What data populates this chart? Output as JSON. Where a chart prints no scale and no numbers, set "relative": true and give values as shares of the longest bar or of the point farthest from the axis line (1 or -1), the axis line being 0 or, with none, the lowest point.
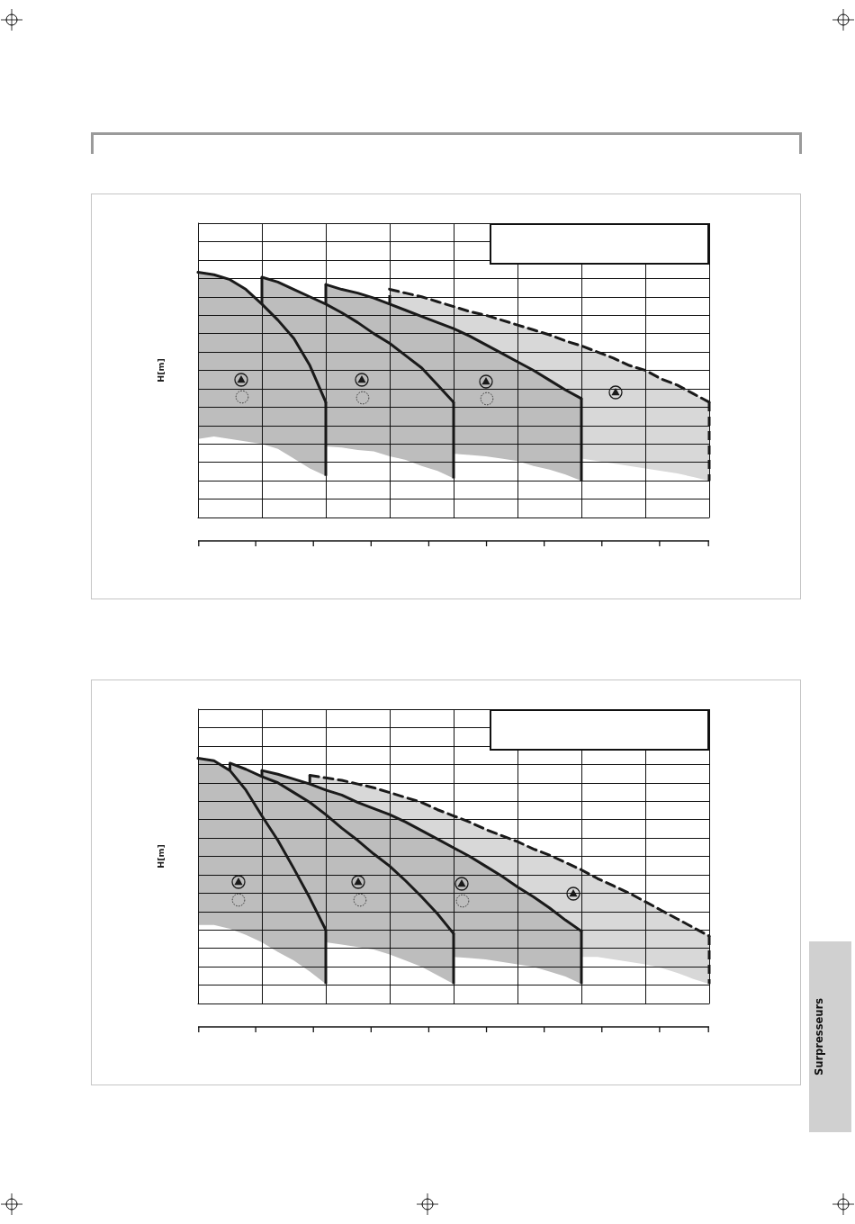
{
  "chart_data": [
    {
      "type": "line",
      "categories": [
        null,
        null,
        null,
        null,
        null,
        null,
        null,
        null,
        null,
        null,
        null,
        null,
        null,
        null,
        null,
        null,
        null,
        null,
        null,
        null,
        null,
        null,
        null,
        null,
        null,
        null,
        null,
        null,
        null,
        null,
        null,
        null,
        null
      ],
      "ylabel": "H[m]",
      "relative": true,
      "grid": true,
      "tick_labels": false,
      "marker": "none",
      "line_style": "solid",
      "series": [
        {
          "color": "#1a1a1a",
          "values": [
            1.0,
            0.99,
            0.97,
            0.93,
            0.87,
            0.805,
            0.73,
            0.62,
            0.47,
            null,
            null,
            null,
            null,
            null,
            null,
            null,
            null,
            null,
            null,
            null,
            null,
            null,
            null,
            null,
            null,
            null,
            null,
            null,
            null,
            null,
            null,
            null,
            null
          ],
          "lower": [
            0.32,
            0.33,
            0.32,
            0.31,
            0.3,
            0.28,
            0.24,
            0.2,
            0.17,
            null,
            null,
            null,
            null,
            null,
            null,
            null,
            null,
            null,
            null,
            null,
            null,
            null,
            null,
            null,
            null,
            null,
            null,
            null,
            null,
            null,
            null,
            null,
            null
          ],
          "upper": [
            1.0,
            0.99,
            0.97,
            0.93,
            0.87,
            0.805,
            0.73,
            0.62,
            0.47,
            null,
            null,
            null,
            null,
            null,
            null,
            null,
            null,
            null,
            null,
            null,
            null,
            null,
            null,
            null,
            null,
            null,
            null,
            null,
            null,
            null,
            null,
            null,
            null
          ]
        },
        {
          "color": "#1a1a1a",
          "values": [
            null,
            null,
            null,
            null,
            0.98,
            0.96,
            0.93,
            0.9,
            0.87,
            0.835,
            0.795,
            0.75,
            0.71,
            0.66,
            0.61,
            0.54,
            0.47,
            null,
            null,
            null,
            null,
            null,
            null,
            null,
            null,
            null,
            null,
            null,
            null,
            null,
            null,
            null,
            null
          ],
          "lower": [
            null,
            null,
            null,
            null,
            0.87,
            0.805,
            0.73,
            0.62,
            0.29,
            0.285,
            0.275,
            0.27,
            0.25,
            0.235,
            0.21,
            0.19,
            0.16,
            null,
            null,
            null,
            null,
            null,
            null,
            null,
            null,
            null,
            null,
            null,
            null,
            null,
            null,
            null,
            null
          ],
          "upper": [
            null,
            null,
            null,
            null,
            0.98,
            0.96,
            0.93,
            0.9,
            0.87,
            0.835,
            0.795,
            0.75,
            0.71,
            0.66,
            0.61,
            0.54,
            0.47,
            null,
            null,
            null,
            null,
            null,
            null,
            null,
            null,
            null,
            null,
            null,
            null,
            null,
            null,
            null,
            null
          ]
        },
        {
          "color": "#1a1a1a",
          "values": [
            null,
            null,
            null,
            null,
            null,
            null,
            null,
            null,
            0.95,
            0.93,
            0.915,
            0.895,
            0.87,
            0.845,
            0.82,
            0.795,
            0.77,
            0.74,
            0.705,
            0.67,
            0.635,
            0.6,
            0.56,
            0.52,
            0.485,
            null,
            null,
            null,
            null,
            null,
            null,
            null,
            null
          ],
          "lower": [
            null,
            null,
            null,
            null,
            null,
            null,
            null,
            null,
            0.87,
            0.835,
            0.795,
            0.75,
            0.71,
            0.66,
            0.61,
            0.54,
            0.26,
            0.255,
            0.25,
            0.24,
            0.23,
            0.21,
            0.195,
            0.175,
            0.15,
            null,
            null,
            null,
            null,
            null,
            null,
            null,
            null
          ],
          "upper": [
            null,
            null,
            null,
            null,
            null,
            null,
            null,
            null,
            0.95,
            0.93,
            0.915,
            0.895,
            0.87,
            0.845,
            0.82,
            0.795,
            0.77,
            0.74,
            0.705,
            0.67,
            0.635,
            0.6,
            0.56,
            0.52,
            0.485,
            null,
            null,
            null,
            null,
            null,
            null,
            null,
            null
          ]
        },
        {
          "color": "#1a1a1a",
          "line_style": "dashed",
          "values": [
            null,
            null,
            null,
            null,
            null,
            null,
            null,
            null,
            null,
            null,
            null,
            null,
            0.93,
            0.915,
            0.9,
            0.88,
            0.86,
            0.84,
            0.825,
            0.805,
            0.785,
            0.765,
            0.745,
            0.72,
            0.7,
            0.675,
            0.65,
            0.62,
            0.6,
            0.565,
            0.54,
            0.505,
            0.47
          ],
          "lower": [
            null,
            null,
            null,
            null,
            null,
            null,
            null,
            null,
            null,
            null,
            null,
            null,
            0.87,
            0.845,
            0.82,
            0.795,
            0.77,
            0.74,
            0.705,
            0.67,
            0.635,
            0.6,
            0.56,
            0.52,
            0.24,
            0.23,
            0.22,
            0.21,
            0.2,
            0.19,
            0.18,
            0.165,
            0.15
          ],
          "upper": [
            null,
            null,
            null,
            null,
            null,
            null,
            null,
            null,
            null,
            null,
            null,
            null,
            0.93,
            0.915,
            0.9,
            0.88,
            0.86,
            0.84,
            0.825,
            0.805,
            0.785,
            0.765,
            0.745,
            0.72,
            0.7,
            0.675,
            0.65,
            0.62,
            0.6,
            0.565,
            0.54,
            0.505,
            0.47
          ]
        }
      ]
    },
    {
      "type": "line",
      "categories": [
        null,
        null,
        null,
        null,
        null,
        null,
        null,
        null,
        null,
        null,
        null,
        null,
        null,
        null,
        null,
        null,
        null,
        null,
        null,
        null,
        null,
        null,
        null,
        null,
        null,
        null,
        null,
        null,
        null,
        null,
        null,
        null,
        null
      ],
      "ylabel": "H[m]",
      "relative": true,
      "grid": true,
      "tick_labels": false,
      "marker": "none",
      "line_style": "solid",
      "annotations": [
        "Surpresseurs"
      ],
      "series": [
        {
          "color": "#1a1a1a",
          "values": [
            1.0,
            0.99,
            0.95,
            0.87,
            0.765,
            0.665,
            0.55,
            0.43,
            0.3,
            null,
            null,
            null,
            null,
            null,
            null,
            null,
            null,
            null,
            null,
            null,
            null,
            null,
            null,
            null,
            null,
            null,
            null,
            null,
            null,
            null,
            null,
            null,
            null
          ],
          "lower": [
            0.32,
            0.32,
            0.305,
            0.28,
            0.25,
            0.21,
            0.175,
            0.13,
            0.08,
            null,
            null,
            null,
            null,
            null,
            null,
            null,
            null,
            null,
            null,
            null,
            null,
            null,
            null,
            null,
            null,
            null,
            null,
            null,
            null,
            null,
            null,
            null,
            null
          ],
          "upper": [
            1.0,
            0.99,
            0.95,
            0.87,
            0.765,
            0.665,
            0.55,
            0.43,
            0.3,
            null,
            null,
            null,
            null,
            null,
            null,
            null,
            null,
            null,
            null,
            null,
            null,
            null,
            null,
            null,
            null,
            null,
            null,
            null,
            null,
            null,
            null,
            null,
            null
          ]
        },
        {
          "color": "#1a1a1a",
          "values": [
            null,
            null,
            0.98,
            0.955,
            0.925,
            0.9,
            0.86,
            0.82,
            0.77,
            0.715,
            0.665,
            0.61,
            0.56,
            0.5,
            0.435,
            0.365,
            0.285,
            null,
            null,
            null,
            null,
            null,
            null,
            null,
            null,
            null,
            null,
            null,
            null,
            null,
            null,
            null,
            null
          ],
          "lower": [
            null,
            null,
            0.95,
            0.87,
            0.765,
            0.665,
            0.55,
            0.43,
            0.25,
            0.24,
            0.23,
            0.22,
            0.2,
            0.175,
            0.15,
            0.115,
            0.08,
            null,
            null,
            null,
            null,
            null,
            null,
            null,
            null,
            null,
            null,
            null,
            null,
            null,
            null,
            null,
            null
          ],
          "upper": [
            null,
            null,
            0.98,
            0.955,
            0.925,
            0.9,
            0.86,
            0.82,
            0.77,
            0.715,
            0.665,
            0.61,
            0.56,
            0.5,
            0.435,
            0.365,
            0.285,
            null,
            null,
            null,
            null,
            null,
            null,
            null,
            null,
            null,
            null,
            null,
            null,
            null,
            null,
            null,
            null
          ]
        },
        {
          "color": "#1a1a1a",
          "values": [
            null,
            null,
            null,
            null,
            0.95,
            0.935,
            0.915,
            0.895,
            0.87,
            0.85,
            0.82,
            0.795,
            0.77,
            0.74,
            0.705,
            0.67,
            0.635,
            0.6,
            0.56,
            0.52,
            0.475,
            0.435,
            0.39,
            0.34,
            0.295,
            null,
            null,
            null,
            null,
            null,
            null,
            null,
            null
          ],
          "lower": [
            null,
            null,
            null,
            null,
            0.925,
            0.9,
            0.86,
            0.82,
            0.77,
            0.715,
            0.665,
            0.61,
            0.56,
            0.5,
            0.435,
            0.365,
            0.19,
            0.185,
            0.18,
            0.17,
            0.16,
            0.15,
            0.13,
            0.11,
            0.08,
            null,
            null,
            null,
            null,
            null,
            null,
            null,
            null
          ],
          "upper": [
            null,
            null,
            null,
            null,
            0.95,
            0.935,
            0.915,
            0.895,
            0.87,
            0.85,
            0.82,
            0.795,
            0.77,
            0.74,
            0.705,
            0.67,
            0.635,
            0.6,
            0.56,
            0.52,
            0.475,
            0.435,
            0.39,
            0.34,
            0.295,
            null,
            null,
            null,
            null,
            null,
            null,
            null,
            null
          ]
        },
        {
          "color": "#1a1a1a",
          "line_style": "dashed",
          "values": [
            null,
            null,
            null,
            null,
            null,
            null,
            null,
            0.93,
            0.92,
            0.91,
            0.895,
            0.88,
            0.86,
            0.84,
            0.82,
            0.79,
            0.765,
            0.74,
            0.71,
            0.685,
            0.66,
            0.63,
            0.605,
            0.575,
            0.545,
            0.51,
            0.48,
            0.45,
            0.415,
            0.38,
            0.345,
            0.31,
            0.275
          ],
          "lower": [
            null,
            null,
            null,
            null,
            null,
            null,
            null,
            0.895,
            0.87,
            0.85,
            0.82,
            0.795,
            0.77,
            0.74,
            0.705,
            0.67,
            0.635,
            0.6,
            0.56,
            0.52,
            0.475,
            0.435,
            0.39,
            0.34,
            0.19,
            0.19,
            0.18,
            0.17,
            0.16,
            0.145,
            0.125,
            0.1,
            0.08
          ],
          "upper": [
            null,
            null,
            null,
            null,
            null,
            null,
            null,
            0.93,
            0.92,
            0.91,
            0.895,
            0.88,
            0.86,
            0.84,
            0.82,
            0.79,
            0.765,
            0.74,
            0.71,
            0.685,
            0.66,
            0.63,
            0.605,
            0.575,
            0.545,
            0.51,
            0.48,
            0.45,
            0.415,
            0.38,
            0.345,
            0.31,
            0.275
          ]
        }
      ]
    }
  ]
}
